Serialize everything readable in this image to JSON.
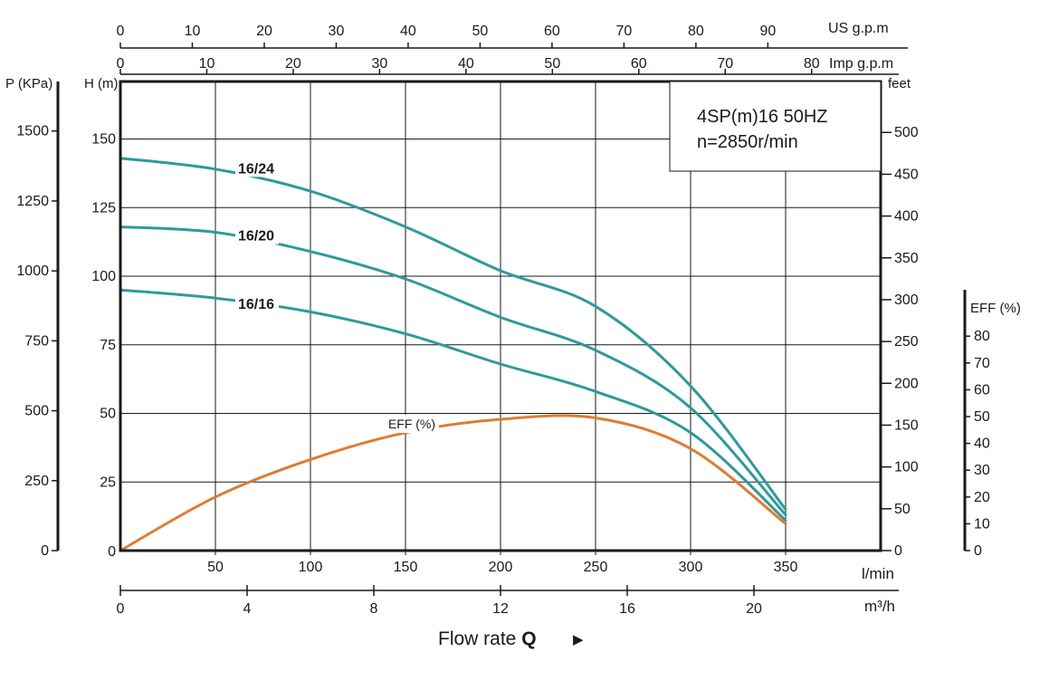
{
  "title": {
    "model": "4SP(m)16  50HZ",
    "speed": "n=2850r/min"
  },
  "units": {
    "us_gpm": "US g.p.m",
    "imp_gpm": "Imp g.p.m",
    "pressure": "P (KPa)",
    "head": "H (m)",
    "feet": "feet",
    "eff": "EFF (%)",
    "lmin": "l/min",
    "m3h": "m³/h",
    "flow_label": "Flow rate",
    "flow_q": "Q",
    "arrow": "▶"
  },
  "colors": {
    "head_curves": "#2e9a9b",
    "efficiency": "#e07b32",
    "frame": "#1a1a1a",
    "grid": "#1a1a1a"
  },
  "chart_data": {
    "type": "line",
    "x_unit": "l/min",
    "xlim": [
      0,
      400
    ],
    "ylim": [
      0,
      170
    ],
    "grid": true,
    "axes": {
      "l_min_ticks": [
        50,
        100,
        150,
        200,
        250,
        300,
        350
      ],
      "m3h_ticks": [
        0,
        4,
        8,
        12,
        16,
        20
      ],
      "us_gpm_ticks": [
        0,
        10,
        20,
        30,
        40,
        50,
        60,
        70,
        80,
        90
      ],
      "imp_gpm_ticks": [
        0,
        10,
        20,
        30,
        40,
        50,
        60,
        70,
        80
      ],
      "head_m_ticks": [
        25,
        50,
        75,
        100,
        125,
        150
      ],
      "pressure_kpa_ticks": [
        0,
        250,
        500,
        750,
        1000,
        1250,
        1500
      ],
      "feet_ticks": [
        0,
        50,
        100,
        150,
        200,
        250,
        300,
        350,
        400,
        450,
        500
      ],
      "eff_ticks": [
        0,
        10,
        20,
        30,
        40,
        50,
        60,
        70,
        80
      ],
      "head_origin_label": "0"
    },
    "series": [
      {
        "name": "16/24",
        "x": [
          0,
          50,
          100,
          150,
          200,
          250,
          300,
          350
        ],
        "y": [
          143,
          139,
          131,
          118,
          102,
          89,
          60,
          15
        ]
      },
      {
        "name": "16/20",
        "x": [
          0,
          50,
          100,
          150,
          200,
          250,
          300,
          350
        ],
        "y": [
          118,
          116,
          109,
          99,
          85,
          73,
          52,
          13
        ]
      },
      {
        "name": "16/16",
        "x": [
          0,
          50,
          100,
          150,
          200,
          250,
          300,
          350
        ],
        "y": [
          95,
          92,
          87,
          79,
          68,
          58,
          43,
          11
        ]
      },
      {
        "name": "EFF (%)",
        "y_unit": "%",
        "x": [
          0,
          50,
          100,
          150,
          200,
          250,
          300,
          350
        ],
        "y": [
          0,
          20,
          34,
          44,
          49,
          49.5,
          38,
          10
        ]
      }
    ]
  }
}
